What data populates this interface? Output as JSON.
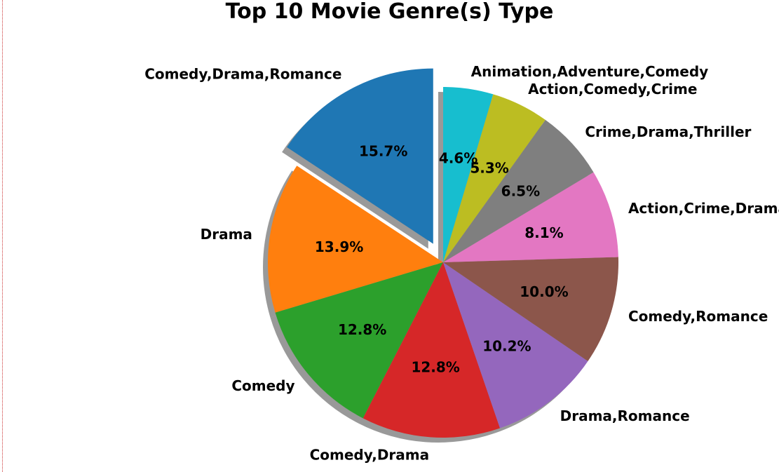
{
  "chart_data": {
    "type": "pie",
    "title": "Top 10 Movie Genre(s) Type",
    "start_angle_deg": 90,
    "direction": "counterclockwise",
    "explode": [
      0.12,
      0,
      0,
      0,
      0,
      0,
      0,
      0,
      0,
      0
    ],
    "shadow": true,
    "slices": [
      {
        "label": "Comedy,Drama,Romance",
        "value": 15.7,
        "pct_label": "15.7%",
        "color": "#1f77b4"
      },
      {
        "label": "Drama",
        "value": 13.9,
        "pct_label": "13.9%",
        "color": "#ff7f0e"
      },
      {
        "label": "Comedy",
        "value": 12.8,
        "pct_label": "12.8%",
        "color": "#2ca02c"
      },
      {
        "label": "Comedy,Drama",
        "value": 12.8,
        "pct_label": "12.8%",
        "color": "#d62728"
      },
      {
        "label": "Drama,Romance",
        "value": 10.2,
        "pct_label": "10.2%",
        "color": "#9467bd"
      },
      {
        "label": "Comedy,Romance",
        "value": 10.0,
        "pct_label": "10.0%",
        "color": "#8c564b"
      },
      {
        "label": "Action,Crime,Drama",
        "value": 8.1,
        "pct_label": "8.1%",
        "color": "#e377c2"
      },
      {
        "label": "Crime,Drama,Thriller",
        "value": 6.5,
        "pct_label": "6.5%",
        "color": "#7f7f7f"
      },
      {
        "label": "Action,Comedy,Crime",
        "value": 5.3,
        "pct_label": "5.3%",
        "color": "#bcbd22"
      },
      {
        "label": "Animation,Adventure,Comedy",
        "value": 4.6,
        "pct_label": "4.6%",
        "color": "#17becf"
      }
    ]
  }
}
